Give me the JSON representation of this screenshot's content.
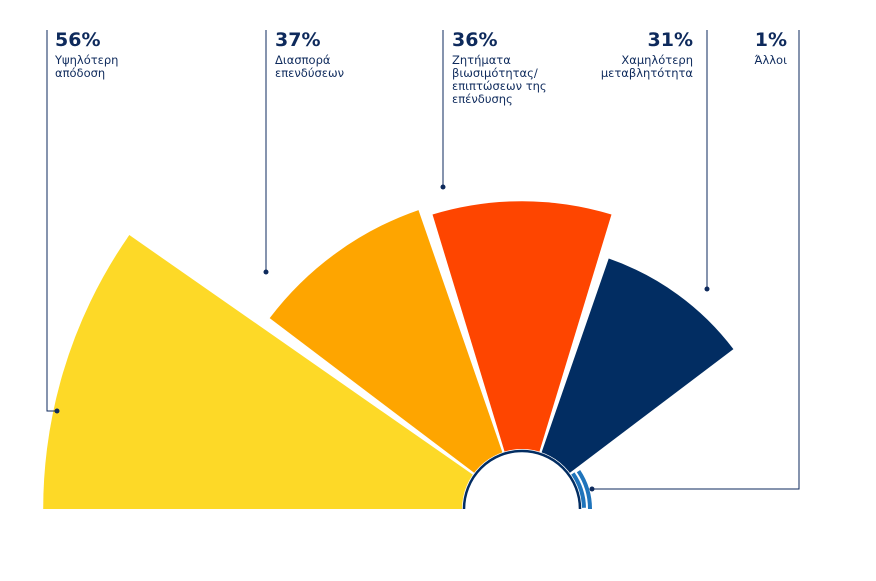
{
  "chart_data": {
    "type": "pie",
    "categories": [
      "Υψηλότερη απόδοση",
      "Διασπορά επενδύσεων",
      "Ζητήματα βιωσιμότητας/ επιπτώσεων της επένδυσης",
      "Χαμηλότερη μεταβλητότητα",
      "Άλλοι"
    ],
    "values": [
      56,
      37,
      36,
      31,
      1
    ],
    "value_labels": [
      "56%",
      "37%",
      "36%",
      "31%",
      "1%"
    ],
    "colors": [
      "#fdd927",
      "#fea500",
      "#fe4500",
      "#022d62",
      "#1f74bb"
    ],
    "legend": "none",
    "grid": false
  }
}
